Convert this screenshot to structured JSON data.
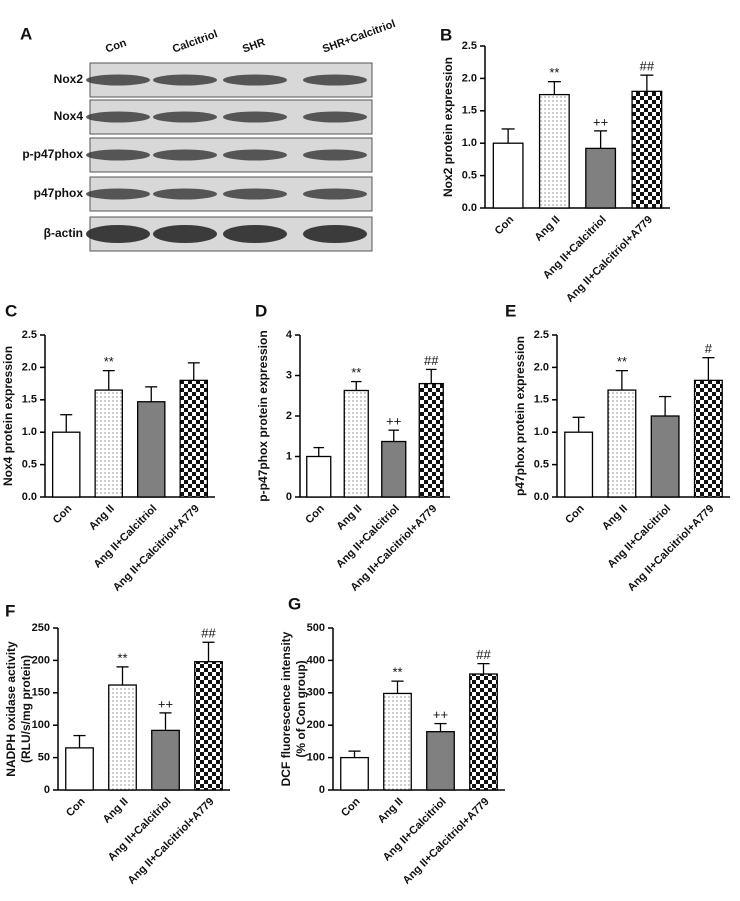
{
  "blot": {
    "label": "A",
    "columns": [
      "Con",
      "Calcitriol",
      "SHR",
      "SHR+Calcitriol"
    ],
    "rows": [
      "Nox2",
      "Nox4",
      "p-p47phox",
      "p47phox",
      "β-actin"
    ]
  },
  "chart_data": [
    {
      "type": "bar",
      "label": "B",
      "ylabel": "Nox2 protein expression",
      "categories": [
        "Con",
        "Ang II",
        "Ang II+Calcitriol",
        "Ang II+Calcitriol+A779"
      ],
      "values": [
        1.0,
        1.75,
        0.92,
        1.8
      ],
      "errors": [
        0.22,
        0.2,
        0.27,
        0.25
      ],
      "annotations": [
        null,
        "**",
        "++",
        "##"
      ],
      "bar_styles": [
        "white",
        "dotted",
        "gray",
        "checkered"
      ],
      "ylim": [
        0,
        2.5
      ],
      "yticks": [
        {
          "value": 0,
          "label": "0.0"
        },
        {
          "value": 0.5,
          "label": "0.5"
        },
        {
          "value": 1,
          "label": "1.0"
        },
        {
          "value": 1.5,
          "label": "1.5"
        },
        {
          "value": 2,
          "label": "2.0"
        },
        {
          "value": 2.5,
          "label": "2.5"
        }
      ]
    },
    {
      "type": "bar",
      "label": "C",
      "ylabel": "Nox4 protein expression",
      "categories": [
        "Con",
        "Ang II",
        "Ang II+Calcitriol",
        "Ang II+Calcitriol+A779"
      ],
      "values": [
        1.0,
        1.65,
        1.47,
        1.8
      ],
      "errors": [
        0.27,
        0.3,
        0.23,
        0.27
      ],
      "annotations": [
        null,
        "**",
        null,
        null
      ],
      "bar_styles": [
        "white",
        "dotted",
        "gray",
        "checkered"
      ],
      "ylim": [
        0,
        2.5
      ],
      "yticks": [
        {
          "value": 0,
          "label": "0.0"
        },
        {
          "value": 0.5,
          "label": "0.5"
        },
        {
          "value": 1,
          "label": "1.0"
        },
        {
          "value": 1.5,
          "label": "1.5"
        },
        {
          "value": 2,
          "label": "2.0"
        },
        {
          "value": 2.5,
          "label": "2.5"
        }
      ]
    },
    {
      "type": "bar",
      "label": "D",
      "ylabel": "p-p47phox protein expression",
      "categories": [
        "Con",
        "Ang II",
        "Ang II+Calcitriol",
        "Ang II+Calcitriol+A779"
      ],
      "values": [
        1.0,
        2.63,
        1.37,
        2.8
      ],
      "errors": [
        0.22,
        0.22,
        0.28,
        0.35
      ],
      "annotations": [
        null,
        "**",
        "++",
        "##"
      ],
      "bar_styles": [
        "white",
        "dotted",
        "gray",
        "checkered"
      ],
      "ylim": [
        0,
        4
      ],
      "yticks": [
        0,
        1,
        2,
        3,
        4
      ]
    },
    {
      "type": "bar",
      "label": "E",
      "ylabel": "p47phox protein expression",
      "categories": [
        "Con",
        "Ang II",
        "Ang II+Calcitriol",
        "Ang II+Calcitriol+A779"
      ],
      "values": [
        1.0,
        1.65,
        1.25,
        1.8
      ],
      "errors": [
        0.23,
        0.3,
        0.3,
        0.35
      ],
      "annotations": [
        null,
        "**",
        null,
        "#"
      ],
      "bar_styles": [
        "white",
        "dotted",
        "gray",
        "checkered"
      ],
      "ylim": [
        0,
        2.5
      ],
      "yticks": [
        {
          "value": 0,
          "label": "0.0"
        },
        {
          "value": 0.5,
          "label": "0.5"
        },
        {
          "value": 1,
          "label": "1.0"
        },
        {
          "value": 1.5,
          "label": "1.5"
        },
        {
          "value": 2,
          "label": "2.0"
        },
        {
          "value": 2.5,
          "label": "2.5"
        }
      ]
    },
    {
      "type": "bar",
      "label": "F",
      "ylabel": [
        "NADPH oxidase activity",
        "(RLU/s/mg protein)"
      ],
      "categories": [
        "Con",
        "Ang II",
        "Ang II+Calcitriol",
        "Ang II+Calcitriol+A779"
      ],
      "values": [
        65,
        162,
        92,
        198
      ],
      "errors": [
        19,
        28,
        27,
        30
      ],
      "annotations": [
        null,
        "**",
        "++",
        "##"
      ],
      "bar_styles": [
        "white",
        "dotted",
        "gray",
        "checkered"
      ],
      "ylim": [
        0,
        250
      ],
      "yticks": [
        0,
        50,
        100,
        150,
        200,
        250
      ]
    },
    {
      "type": "bar",
      "label": "G",
      "ylabel": [
        "DCF fluorescence intensity",
        "(% of Con group)"
      ],
      "categories": [
        "Con",
        "Ang II",
        "Ang II+Calcitriol",
        "Ang II+Calcitriol+A779"
      ],
      "values": [
        100,
        298,
        180,
        358
      ],
      "errors": [
        20,
        38,
        25,
        32
      ],
      "annotations": [
        null,
        "**",
        "++",
        "##"
      ],
      "bar_styles": [
        "white",
        "dotted",
        "gray",
        "checkered"
      ],
      "ylim": [
        0,
        500
      ],
      "yticks": [
        0,
        100,
        200,
        300,
        400,
        500
      ]
    }
  ]
}
